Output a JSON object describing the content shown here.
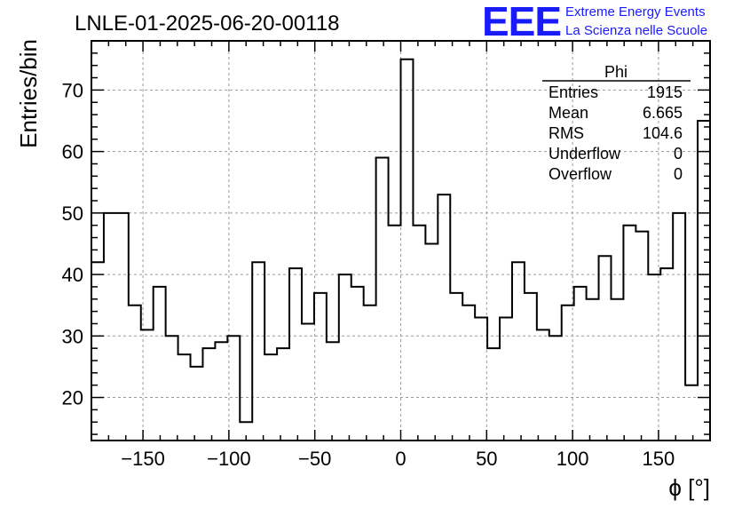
{
  "chart_data": {
    "type": "bar",
    "title": "LNLE-01-2025-06-20-00118",
    "xlabel": "ϕ [°]",
    "ylabel": "Entries/bin",
    "xlim": [
      -180,
      180
    ],
    "ylim": [
      13,
      78
    ],
    "bin_width": 7.2,
    "x_ticks": [
      -150,
      -100,
      -50,
      0,
      50,
      100,
      150
    ],
    "x_tick_labels": [
      "−150",
      "−100",
      "−50",
      "0",
      "50",
      "100",
      "150"
    ],
    "y_ticks": [
      20,
      30,
      40,
      50,
      60,
      70
    ],
    "y_tick_labels": [
      "20",
      "30",
      "40",
      "50",
      "60",
      "70"
    ],
    "grid": true,
    "values": [
      42,
      50,
      50,
      35,
      31,
      38,
      30,
      27,
      25,
      28,
      29,
      30,
      16,
      42,
      27,
      28,
      41,
      32,
      37,
      29,
      40,
      38,
      35,
      59,
      48,
      75,
      48,
      45,
      53,
      37,
      35,
      33,
      28,
      33,
      42,
      37,
      31,
      30,
      35,
      38,
      36,
      43,
      36,
      48,
      47,
      40,
      41,
      50,
      22,
      65
    ],
    "stats": {
      "name": "Phi",
      "rows": [
        {
          "label": "Entries",
          "value": "1915"
        },
        {
          "label": "Mean",
          "value": "6.665"
        },
        {
          "label": "RMS",
          "value": "104.6"
        },
        {
          "label": "Underflow",
          "value": "0"
        },
        {
          "label": "Overflow",
          "value": "0"
        }
      ]
    }
  },
  "logo": {
    "mark": "EEE",
    "line1": "Extreme Energy Events",
    "line2": "La Scienza nelle Scuole",
    "color": "#1a1aff"
  }
}
